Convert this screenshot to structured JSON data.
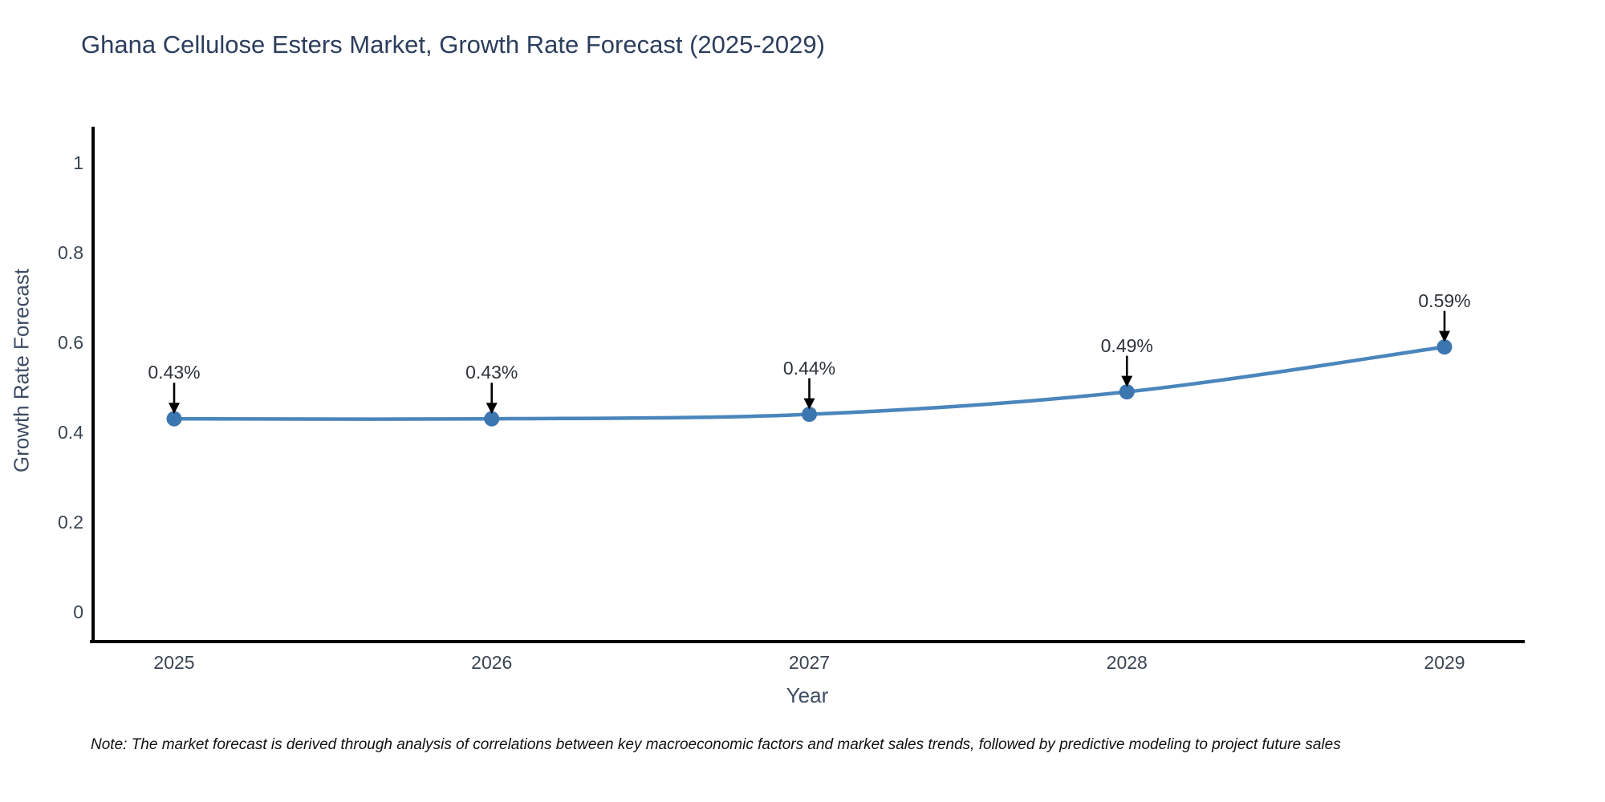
{
  "title": "Ghana Cellulose Esters Market, Growth Rate Forecast (2025-2029)",
  "note": "Note: The market forecast is derived through analysis of correlations between key macroeconomic factors and market sales trends, followed by predictive modeling to project future sales",
  "chart_data": {
    "type": "line",
    "title": "Ghana Cellulose Esters Market, Growth Rate Forecast (2025-2029)",
    "xlabel": "Year",
    "ylabel": "Growth Rate Forecast",
    "categories": [
      "2025",
      "2026",
      "2027",
      "2028",
      "2029"
    ],
    "series": [
      {
        "name": "Growth Rate Forecast",
        "values": [
          0.43,
          0.43,
          0.44,
          0.49,
          0.59
        ],
        "data_labels": [
          "0.43%",
          "0.43%",
          "0.44%",
          "0.49%",
          "0.59%"
        ]
      }
    ],
    "yticks": [
      0,
      0.2,
      0.4,
      0.6,
      0.8,
      1
    ],
    "ytick_labels": [
      "0",
      "0.2",
      "0.4",
      "0.6",
      "0.8",
      "1"
    ],
    "ylim": [
      -0.066,
      1.077
    ],
    "grid": false,
    "legend_position": "none",
    "line_shape": "spline",
    "annotations_have_arrows": true,
    "colors": {
      "line": "#4a86bc",
      "marker": "#3c76b1",
      "axis_line": "#000000",
      "arrow": "#000000",
      "title_text": "#2c3e5e",
      "tick_text": "#3a4552",
      "axis_title_text": "#3e4c63",
      "annotation_text": "#2d3339",
      "background": "#ffffff"
    }
  }
}
